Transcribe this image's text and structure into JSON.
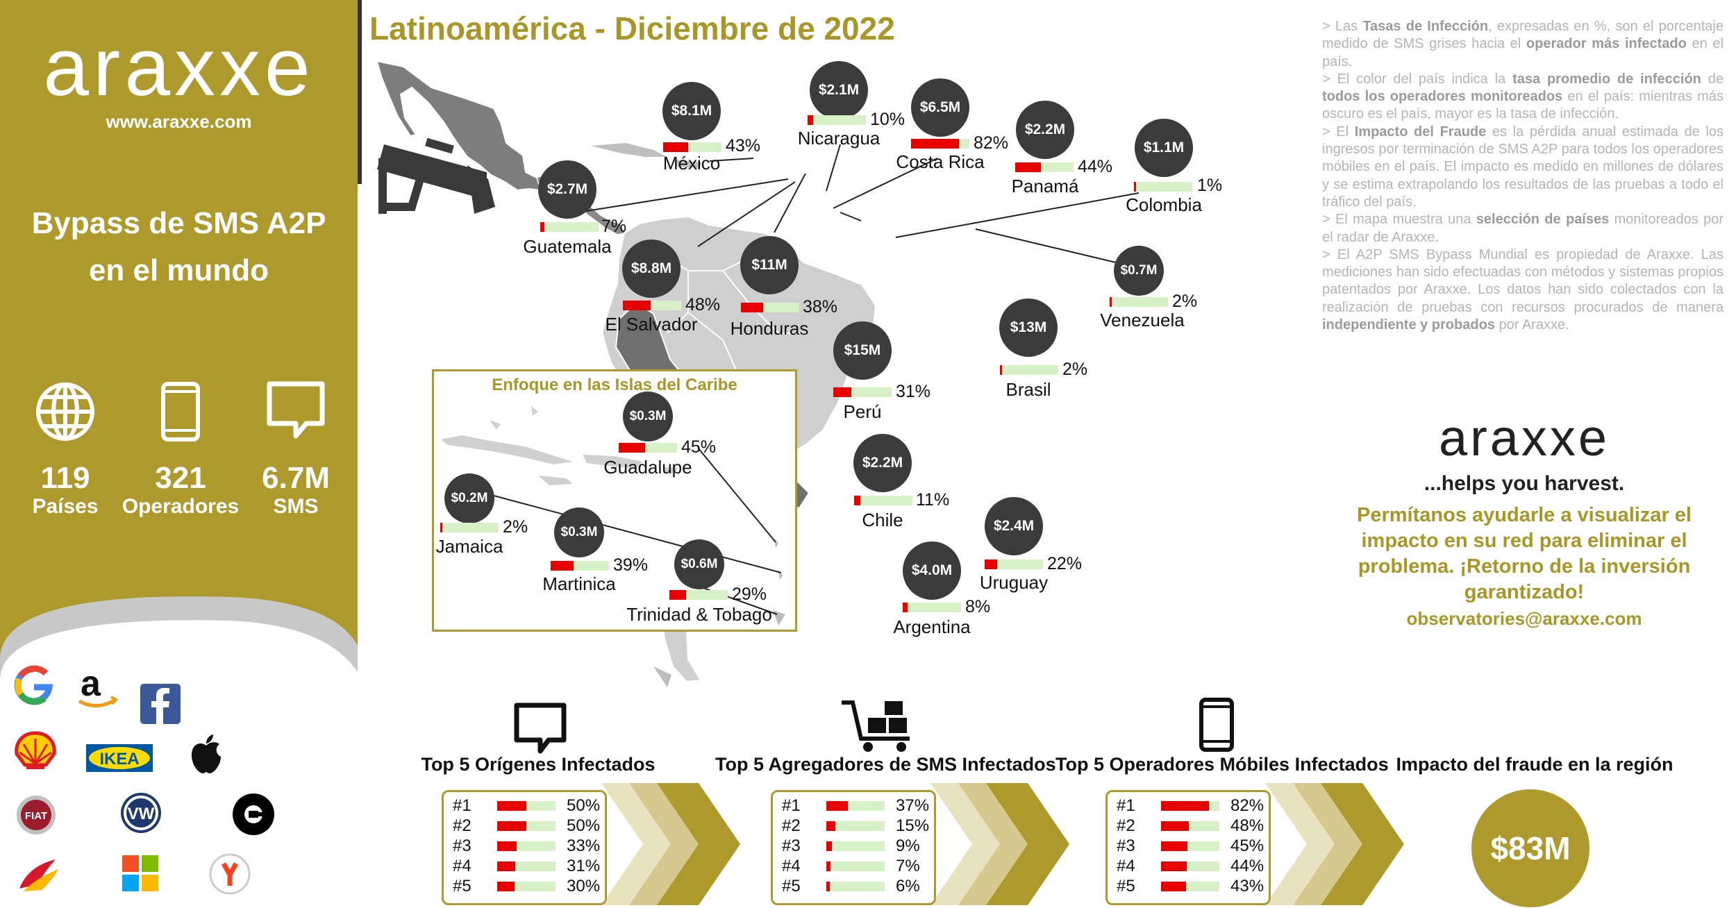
{
  "sidebar": {
    "logo": "araxxe",
    "website": "www.araxxe.com",
    "title_line1": "Bypass de SMS A2P",
    "title_line2": "en el mundo",
    "stats": [
      {
        "icon": "globe-icon",
        "value": "119",
        "label": "Países"
      },
      {
        "icon": "smartphone-icon",
        "value": "321",
        "label": "Operadores"
      },
      {
        "icon": "message-icon",
        "value": "6.7M",
        "label": "SMS"
      }
    ],
    "brands": [
      "google-logo-icon",
      "amazon-logo-icon",
      "facebook-logo-icon",
      "shell-logo-icon",
      "ikea-logo-icon",
      "apple-logo-icon",
      "fiat-logo-icon",
      "volkswagen-logo-icon",
      "uber-logo-icon",
      "iberia-logo-icon",
      "microsoft-logo-icon",
      "yandex-logo-icon"
    ],
    "brand_labels": {
      "ikea": "IKEA",
      "fiat": "FIAT",
      "vw": "VW"
    }
  },
  "header": {
    "title": "Latinoamérica - Diciembre de 2022"
  },
  "colors": {
    "gold": "#ae9a2c",
    "bubble": "#3b3b3b",
    "infection_bar": "#e60000",
    "bar_background": "#d7f0c8"
  },
  "countries": [
    {
      "name": "México",
      "impact": "$8.1M",
      "pct_label": "43%",
      "rate": 0.43
    },
    {
      "name": "Nicaragua",
      "impact": "$2.1M",
      "pct_label": "10%",
      "rate": 0.1
    },
    {
      "name": "Costa Rica",
      "impact": "$6.5M",
      "pct_label": "82%",
      "rate": 0.82
    },
    {
      "name": "Panamá",
      "impact": "$2.2M",
      "pct_label": "44%",
      "rate": 0.44
    },
    {
      "name": "Colombia",
      "impact": "$1.1M",
      "pct_label": "1%",
      "rate": 0.01
    },
    {
      "name": "Guatemala",
      "impact": "$2.7M",
      "pct_label": "7%",
      "rate": 0.07
    },
    {
      "name": "El Salvador",
      "impact": "$8.8M",
      "pct_label": "48%",
      "rate": 0.48
    },
    {
      "name": "Honduras",
      "impact": "$11M",
      "pct_label": "38%",
      "rate": 0.38
    },
    {
      "name": "Venezuela",
      "impact": "$0.7M",
      "pct_label": "2%",
      "rate": 0.02
    },
    {
      "name": "Perú",
      "impact": "$15M",
      "pct_label": "31%",
      "rate": 0.31
    },
    {
      "name": "Brasil",
      "impact": "$13M",
      "pct_label": "2%",
      "rate": 0.02
    },
    {
      "name": "Chile",
      "impact": "$2.2M",
      "pct_label": "11%",
      "rate": 0.11
    },
    {
      "name": "Uruguay",
      "impact": "$2.4M",
      "pct_label": "22%",
      "rate": 0.22
    },
    {
      "name": "Argentina",
      "impact": "$4.0M",
      "pct_label": "8%",
      "rate": 0.08
    }
  ],
  "caribbean": {
    "title": "Enfoque en las Islas del Caribe",
    "countries": [
      {
        "name": "Guadalupe",
        "impact": "$0.3M",
        "pct_label": "45%",
        "rate": 0.45
      },
      {
        "name": "Jamaica",
        "impact": "$0.2M",
        "pct_label": "2%",
        "rate": 0.02
      },
      {
        "name": "Martinica",
        "impact": "$0.3M",
        "pct_label": "39%",
        "rate": 0.39
      },
      {
        "name": "Trinidad & Tobago",
        "impact": "$0.6M",
        "pct_label": "29%",
        "rate": 0.29
      }
    ]
  },
  "notes": [
    {
      "parts": [
        "> Las ",
        "Tasas de Infección",
        ", expresadas en %, son el porcentaje medido de SMS grises hacia el ",
        "operador más infectado",
        " en el país."
      ]
    },
    {
      "parts": [
        "> El color del país indica la ",
        "tasa promedio de infección",
        " de ",
        "todos los operadores monitoreados",
        " en el país: mientras más oscuro es el país, mayor es la tasa de infección."
      ]
    },
    {
      "parts": [
        "> El ",
        "Impacto del Fraude",
        " es la pérdida anual estimada de los ingresos por terminación de SMS A2P para todos los operadores móbiles en el país. El impacto es medido en millones de dólares y se estima extrapolando los resultados de las pruebas a todo el tráfico del país."
      ]
    },
    {
      "parts": [
        "> El mapa muestra una ",
        "selección de países",
        " monitoreados por el radar de Araxxe."
      ]
    },
    {
      "parts": [
        ">  El A2P SMS Bypass Mundial es propiedad de Araxxe. Las mediciones han sido efectuadas con métodos y sistemas propios patentados por Araxxe. Los datos han sido colectados con la realización de pruebas con recursos procurados de manera ",
        "independiente y probados",
        " por Araxxe."
      ]
    }
  ],
  "cta": {
    "logo": "araxxe",
    "tagline": "...helps you harvest.",
    "pitch": "Permítanos ayudarle a visualizar el impacto en su red para eliminar el problema. ¡Retorno de la inversión garantizado!",
    "email": "observatories@araxxe.com"
  },
  "panels": [
    {
      "title": "Top 5 Orígenes Infectados",
      "icon": "message-icon",
      "rows": [
        {
          "rank": "#1",
          "value": "50%",
          "rate": 0.5
        },
        {
          "rank": "#2",
          "value": "50%",
          "rate": 0.5
        },
        {
          "rank": "#3",
          "value": "33%",
          "rate": 0.33
        },
        {
          "rank": "#4",
          "value": "31%",
          "rate": 0.31
        },
        {
          "rank": "#5",
          "value": "30%",
          "rate": 0.3
        }
      ]
    },
    {
      "title": "Top 5 Agregadores de SMS Infectados",
      "icon": "cart-icon",
      "rows": [
        {
          "rank": "#1",
          "value": "37%",
          "rate": 0.37
        },
        {
          "rank": "#2",
          "value": "15%",
          "rate": 0.15
        },
        {
          "rank": "#3",
          "value": "9%",
          "rate": 0.09
        },
        {
          "rank": "#4",
          "value": "7%",
          "rate": 0.07
        },
        {
          "rank": "#5",
          "value": "6%",
          "rate": 0.06
        }
      ]
    },
    {
      "title": "Top 5 Operadores Móbiles Infectados",
      "icon": "smartphone-icon",
      "rows": [
        {
          "rank": "#1",
          "value": "82%",
          "rate": 0.82
        },
        {
          "rank": "#2",
          "value": "48%",
          "rate": 0.48
        },
        {
          "rank": "#3",
          "value": "45%",
          "rate": 0.45
        },
        {
          "rank": "#4",
          "value": "44%",
          "rate": 0.44
        },
        {
          "rank": "#5",
          "value": "43%",
          "rate": 0.43
        }
      ]
    }
  ],
  "impact": {
    "title": "Impacto del fraude en la región",
    "value": "$83M"
  }
}
